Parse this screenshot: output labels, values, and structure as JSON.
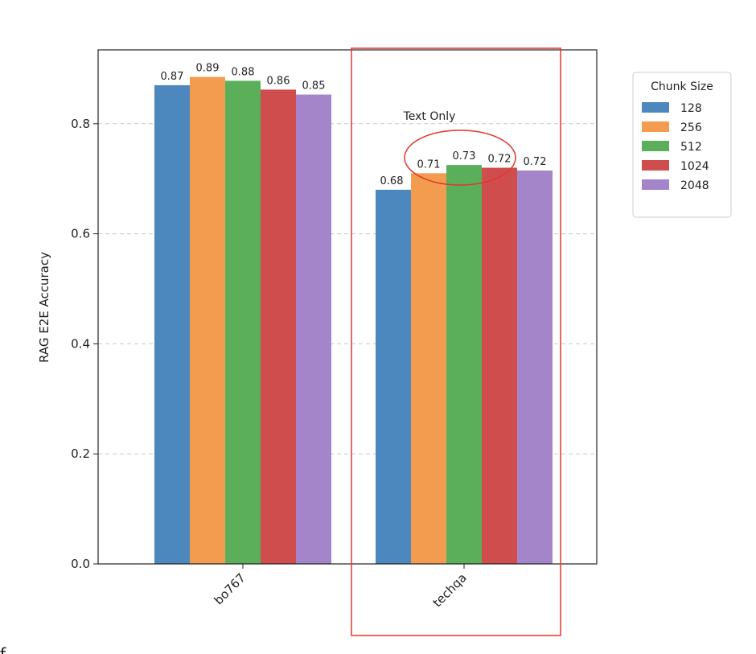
{
  "chart_data": {
    "type": "bar",
    "title": "",
    "xlabel": "",
    "ylabel": "RAG E2E Accuracy",
    "ylim": [
      0,
      0.9
    ],
    "yticks": [
      "0.0",
      "0.2",
      "0.4",
      "0.6",
      "0.8"
    ],
    "ytick_values": [
      0.0,
      0.2,
      0.4,
      0.6,
      0.8
    ],
    "grid": "horizontal dashed",
    "categories": [
      "bo767",
      "techqa"
    ],
    "legend": {
      "title": "Chunk Size",
      "placement": "outside right"
    },
    "series": [
      {
        "name": "128",
        "color": "#4c87be",
        "values": [
          0.87,
          0.68
        ],
        "labels": [
          "0.87",
          "0.68"
        ]
      },
      {
        "name": "256",
        "color": "#f39c4f",
        "values": [
          0.885,
          0.71
        ],
        "labels": [
          "0.89",
          "0.71"
        ]
      },
      {
        "name": "512",
        "color": "#5caf5a",
        "values": [
          0.878,
          0.725
        ],
        "labels": [
          "0.88",
          "0.73"
        ]
      },
      {
        "name": "1024",
        "color": "#cf4d4d",
        "values": [
          0.862,
          0.72
        ],
        "labels": [
          "0.86",
          "0.72"
        ]
      },
      {
        "name": "2048",
        "color": "#a585c9",
        "values": [
          0.853,
          0.715
        ],
        "labels": [
          "0.85",
          "0.72"
        ]
      }
    ],
    "annotations": [
      {
        "text": "Text Only",
        "target": "techqa"
      }
    ],
    "highlight_color": "#e0372e"
  },
  "caption": "f"
}
